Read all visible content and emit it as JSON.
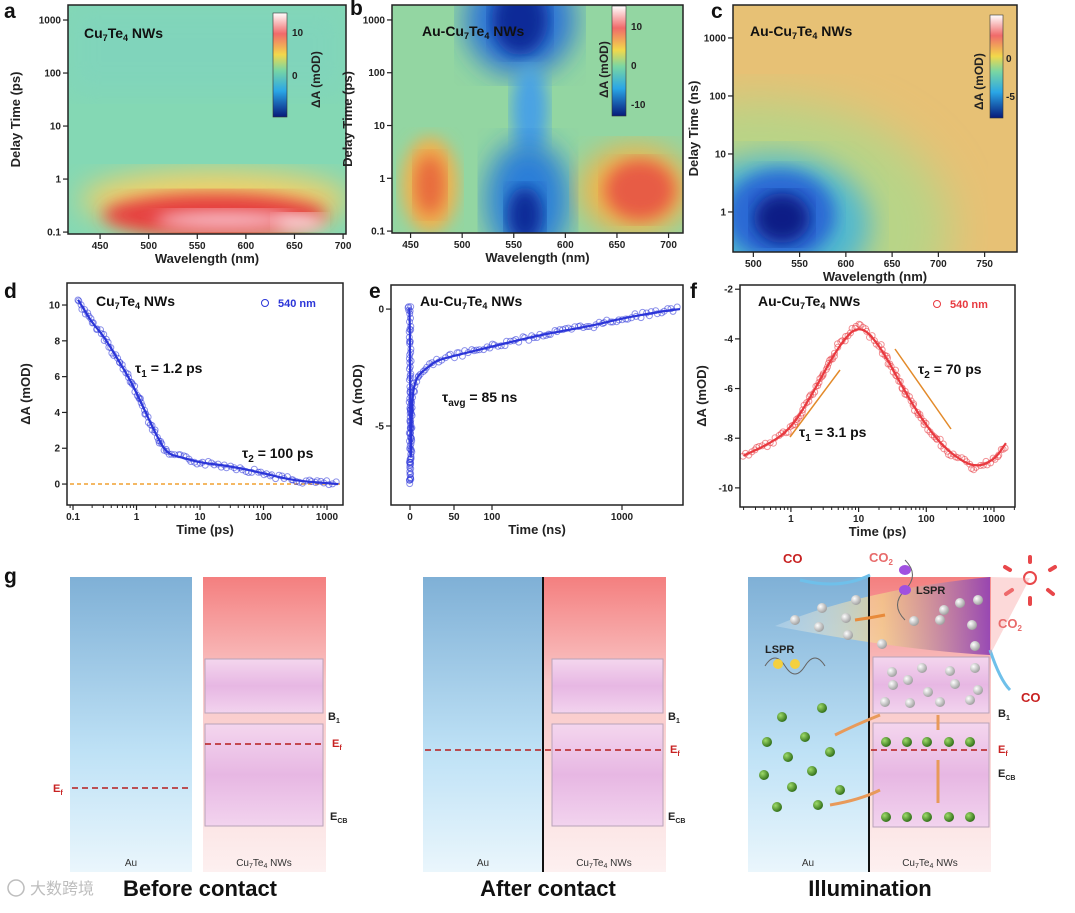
{
  "panel_letters": [
    "a",
    "b",
    "c",
    "d",
    "e",
    "f",
    "g"
  ],
  "watermark": "大数跨境",
  "chart_data": [
    {
      "id": "a",
      "type": "heatmap",
      "title": "Cu7Te4 NWs",
      "title_main": "Cu",
      "title_sub1": "7",
      "title_mid": "Te",
      "title_sub2": "4",
      "title_end": " NWs",
      "xlabel": "Wavelength (nm)",
      "ylabel": "Delay Time (ps)",
      "xscale": "linear",
      "yscale": "log",
      "xlim": [
        417,
        703
      ],
      "ylim": [
        0.092,
        1920
      ],
      "xticks": [
        450,
        500,
        550,
        600,
        650,
        700
      ],
      "yticks": [
        0.1,
        1,
        10,
        100,
        1000
      ],
      "ytick_labels": [
        "0.1",
        "1",
        "10",
        "100",
        "1000"
      ],
      "colorbar": {
        "label": "ΔA (mOD)",
        "ticks": [
          "10",
          "0"
        ],
        "range": [
          -12,
          15
        ]
      },
      "features": "strong positive signal 500-690 nm below ~1 ps"
    },
    {
      "id": "b",
      "type": "heatmap",
      "title": "Au-Cu7Te4 NWs",
      "title_main": "Au-Cu",
      "title_sub1": "7",
      "title_mid": "Te",
      "title_sub2": "4",
      "title_end": " NWs",
      "xlabel": "Wavelength (nm)",
      "ylabel": "Delay Time (ps)",
      "xscale": "linear",
      "yscale": "log",
      "xlim": [
        432,
        714
      ],
      "ylim": [
        0.092,
        1920
      ],
      "xticks": [
        450,
        500,
        550,
        600,
        650,
        700
      ],
      "yticks": [
        0.1,
        1,
        10,
        100,
        1000
      ],
      "ytick_labels": [
        "0.1",
        "1",
        "10",
        "100",
        "1000"
      ],
      "colorbar": {
        "label": "ΔA (mOD)",
        "ticks": [
          "10",
          "0",
          "-10"
        ],
        "range": [
          -15,
          15
        ]
      },
      "features": "bleach near 540 nm, positive bands near 480 and 650 nm"
    },
    {
      "id": "c",
      "type": "heatmap",
      "title": "Au-Cu7Te4 NWs",
      "title_main": "Au-Cu",
      "title_sub1": "7",
      "title_mid": "Te",
      "title_sub2": "4",
      "title_end": " NWs",
      "xlabel": "Wavelength (nm)",
      "ylabel": "Delay Time (ns)",
      "xscale": "linear",
      "yscale": "log",
      "xlim": [
        478,
        785
      ],
      "ylim": [
        0.204,
        3700
      ],
      "xticks": [
        500,
        550,
        600,
        650,
        700,
        750
      ],
      "yticks": [
        1,
        10,
        100,
        1000
      ],
      "ytick_labels": [
        "1",
        "10",
        "100",
        "1000"
      ],
      "colorbar": {
        "label": "ΔA (mOD)",
        "ticks": [
          "0",
          "-5"
        ],
        "range": [
          -7,
          2
        ]
      },
      "features": "bleach centered ~525 nm at ~1 ns"
    },
    {
      "id": "d",
      "type": "scatter",
      "title_main": "Cu",
      "title_sub1": "7",
      "title_mid": "Te",
      "title_sub2": "4",
      "title_end": " NWs",
      "xlabel": "Time (ps)",
      "ylabel": "ΔA (mOD)",
      "xscale": "log",
      "xlim": [
        0.0804,
        1786
      ],
      "ylim": [
        -1.17,
        11.23
      ],
      "xticks": [
        0.1,
        1,
        10,
        100,
        1000
      ],
      "xtick_labels": [
        "0.1",
        "1",
        "10",
        "100",
        "1000"
      ],
      "yticks": [
        0,
        2,
        4,
        6,
        8,
        10
      ],
      "ytick_labels": [
        "0",
        "2",
        "4",
        "6",
        "8",
        "10"
      ],
      "legend": "540 nm",
      "color": "#2b35d8",
      "baseline": 0,
      "annotations": [
        {
          "tau": "τ",
          "sub": "1",
          "text": " = 1.2 ps"
        },
        {
          "tau": "τ",
          "sub": "2",
          "text": " = 100 ps"
        }
      ],
      "x": [
        0.12,
        0.2,
        0.3,
        0.5,
        0.8,
        1.2,
        2,
        3,
        5,
        10,
        30,
        100,
        300,
        1000,
        1500
      ],
      "y": [
        10.3,
        9.0,
        8.3,
        7.0,
        5.8,
        4.5,
        2.8,
        1.7,
        1.5,
        1.2,
        1.0,
        0.6,
        0.2,
        0.05,
        0.0
      ]
    },
    {
      "id": "e",
      "type": "scatter",
      "title_main": "Au-Cu",
      "title_sub1": "7",
      "title_mid": "Te",
      "title_sub2": "4",
      "title_end": " NWs",
      "xlabel": "Time (ns)",
      "ylabel": "ΔA (mOD)",
      "xscale": "piecewise",
      "xlim": [
        -20,
        2900
      ],
      "ylim": [
        -8.38,
        1.03
      ],
      "xticks": [
        0,
        50,
        100,
        1000
      ],
      "xtick_labels": [
        "0",
        "50",
        "100",
        "1000"
      ],
      "yticks": [
        0,
        -5
      ],
      "ytick_labels": [
        "0",
        "-5"
      ],
      "color": "#2b35d8",
      "annotations": [
        {
          "tau": "τ",
          "sub": "avg",
          "text": " = 85 ns"
        }
      ],
      "x": [
        -2,
        0,
        0.5,
        2,
        5,
        10,
        20,
        30,
        50,
        100,
        200,
        300,
        600,
        1000,
        2000,
        2800
      ],
      "y": [
        0,
        0,
        -7.5,
        -4.0,
        -3.2,
        -2.8,
        -2.5,
        -2.2,
        -2.0,
        -1.6,
        -1.2,
        -1.0,
        -0.7,
        -0.4,
        -0.1,
        0
      ]
    },
    {
      "id": "f",
      "type": "scatter",
      "title_main": "Au-Cu",
      "title_sub1": "7",
      "title_mid": "Te",
      "title_sub2": "4",
      "title_end": " NWs",
      "xlabel": "Time (ps)",
      "ylabel": "ΔA (mOD)",
      "xscale": "log",
      "xlim": [
        0.177,
        2043
      ],
      "ylim": [
        -10.77,
        -1.83
      ],
      "xticks": [
        1,
        10,
        100,
        1000
      ],
      "xtick_labels": [
        "1",
        "10",
        "100",
        "1000"
      ],
      "yticks": [
        -2,
        -4,
        -6,
        -8,
        -10
      ],
      "ytick_labels": [
        "-2",
        "-4",
        "-6",
        "-8",
        "-10"
      ],
      "legend": "540 nm",
      "color": "#e8393f",
      "annotations": [
        {
          "tau": "τ",
          "sub": "1",
          "text": " = 3.1 ps"
        },
        {
          "tau": "τ",
          "sub": "2",
          "text": " = 70 ps"
        }
      ],
      "x": [
        0.2,
        0.5,
        1,
        2,
        5,
        10,
        20,
        50,
        100,
        200,
        500,
        1000,
        1500
      ],
      "y": [
        -8.7,
        -8.2,
        -7.6,
        -6.3,
        -4.3,
        -3.4,
        -4.2,
        -6.2,
        -7.5,
        -8.5,
        -9.2,
        -8.9,
        -8.2
      ]
    }
  ],
  "schematic": {
    "au": "Au",
    "nw_main": "Cu",
    "nw_sub1": "7",
    "nw_mid": "Te",
    "nw_sub2": "4",
    "nw_end": " NWs",
    "b1": "B",
    "b1_sub": "1",
    "ef": "E",
    "ef_sub": "f",
    "ecb": "E",
    "ecb_sub": "CB",
    "lspr": "LSPR",
    "co": "CO",
    "co2": "CO",
    "co2_sub": "2",
    "captions": [
      "Before contact",
      "After contact",
      "Illumination"
    ]
  }
}
